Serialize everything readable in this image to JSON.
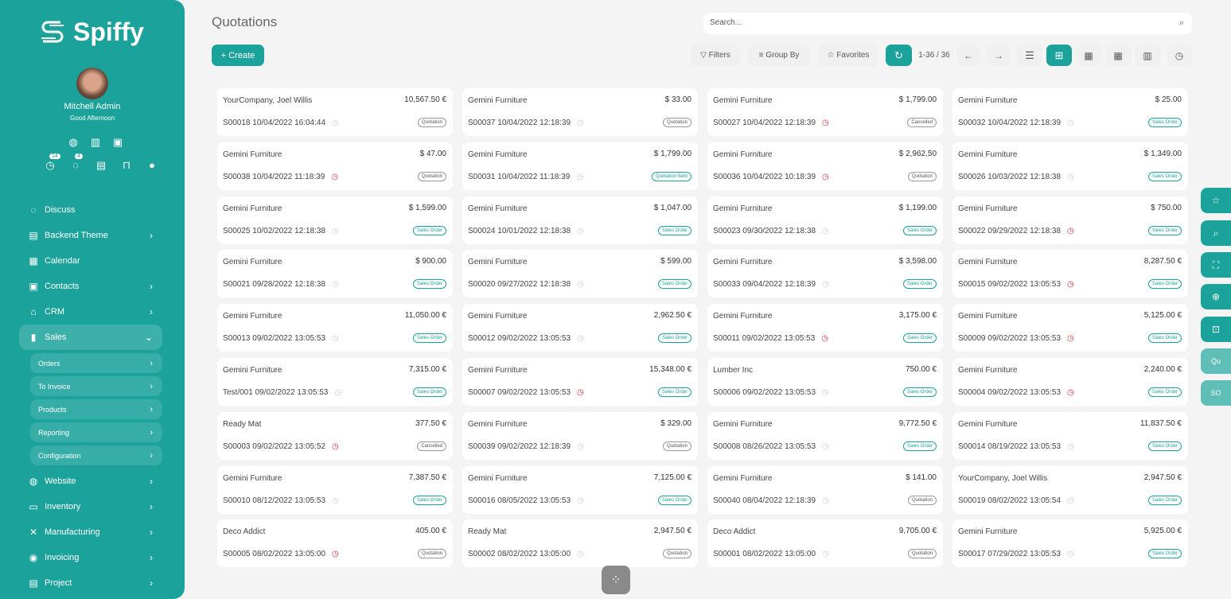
{
  "brand": {
    "name": "Spiffy",
    "color": "#1ba39b"
  },
  "user": {
    "name": "Mitchell Admin",
    "greeting": "Good Afternoon",
    "activity_count": "14",
    "message_count": "4"
  },
  "sidebar": {
    "items": [
      {
        "label": "Discuss",
        "icon": "chat-icon",
        "icon_glyph": "◌",
        "chevron": false
      },
      {
        "label": "Backend Theme",
        "icon": "paint-roller-icon",
        "icon_glyph": "▤",
        "chevron": true
      },
      {
        "label": "Calendar",
        "icon": "calendar-icon",
        "icon_glyph": "▦",
        "chevron": false
      },
      {
        "label": "Contacts",
        "icon": "contacts-icon",
        "icon_glyph": "▣",
        "chevron": true
      },
      {
        "label": "CRM",
        "icon": "crm-icon",
        "icon_glyph": "⌂",
        "chevron": true
      },
      {
        "label": "Sales",
        "icon": "chart-bar-icon",
        "icon_glyph": "▮",
        "chevron": true,
        "expanded": true,
        "children": [
          "Orders",
          "To Invoice",
          "Products",
          "Reporting",
          "Configuration"
        ]
      },
      {
        "label": "Website",
        "icon": "globe-icon",
        "icon_glyph": "◍",
        "chevron": true
      },
      {
        "label": "Inventory",
        "icon": "box-icon",
        "icon_glyph": "▭",
        "chevron": true
      },
      {
        "label": "Manufacturing",
        "icon": "wrench-icon",
        "icon_glyph": "✕",
        "chevron": true
      },
      {
        "label": "Invoicing",
        "icon": "dollar-icon",
        "icon_glyph": "◉",
        "chevron": true
      },
      {
        "label": "Project",
        "icon": "project-icon",
        "icon_glyph": "▤",
        "chevron": true
      }
    ]
  },
  "header": {
    "title": "Quotations",
    "search_placeholder": "Search...",
    "create_label": "+ Create",
    "filters_label": "Filters",
    "group_by_label": "Group By",
    "favorites_label": "Favorites",
    "pager": "1-36 / 36"
  },
  "cards": [
    [
      "YourCompany, Joel Willis",
      "10,567.50 €",
      "S00018 10/04/2022 16:04:44",
      false,
      "Quotation"
    ],
    [
      "Gemini Furniture",
      "$ 33.00",
      "S00037 10/04/2022 12:18:39",
      false,
      "Quotation"
    ],
    [
      "Gemini Furniture",
      "$ 1,799.00",
      "S00027 10/04/2022 12:18:39",
      true,
      "Cancelled"
    ],
    [
      "Gemini Furniture",
      "$ 25.00",
      "S00032 10/04/2022 12:18:39",
      false,
      "Sales Order"
    ],
    [
      "Gemini Furniture",
      "$ 47.00",
      "S00038 10/04/2022 11:18:39",
      true,
      "Quotation"
    ],
    [
      "Gemini Furniture",
      "$ 1,799.00",
      "S00031 10/04/2022 11:18:39",
      false,
      "Quotation Sent"
    ],
    [
      "Gemini Furniture",
      "$ 2,962.50",
      "S00036 10/04/2022 10:18:39",
      true,
      "Quotation"
    ],
    [
      "Gemini Furniture",
      "$ 1,349.00",
      "S00026 10/03/2022 12:18:38",
      false,
      "Sales Order"
    ],
    [
      "Gemini Furniture",
      "$ 1,599.00",
      "S00025 10/02/2022 12:18:38",
      false,
      "Sales Order"
    ],
    [
      "Gemini Furniture",
      "$ 1,047.00",
      "S00024 10/01/2022 12:18:38",
      false,
      "Sales Order"
    ],
    [
      "Gemini Furniture",
      "$ 1,199.00",
      "S00023 09/30/2022 12:18:38",
      false,
      "Sales Order"
    ],
    [
      "Gemini Furniture",
      "$ 750.00",
      "S00022 09/29/2022 12:18:38",
      true,
      "Sales Order"
    ],
    [
      "Gemini Furniture",
      "$ 900.00",
      "S00021 09/28/2022 12:18:38",
      false,
      "Sales Order"
    ],
    [
      "Gemini Furniture",
      "$ 599.00",
      "S00020 09/27/2022 12:18:38",
      false,
      "Sales Order"
    ],
    [
      "Gemini Furniture",
      "$ 3,598.00",
      "S00033 09/04/2022 12:18:39",
      false,
      "Sales Order"
    ],
    [
      "Gemini Furniture",
      "8,287.50 €",
      "S00015 09/02/2022 13:05:53",
      true,
      "Sales Order"
    ],
    [
      "Gemini Furniture",
      "11,050.00 €",
      "S00013 09/02/2022 13:05:53",
      false,
      "Sales Order"
    ],
    [
      "Gemini Furniture",
      "2,962.50 €",
      "S00012 09/02/2022 13:05:53",
      false,
      "Sales Order"
    ],
    [
      "Gemini Furniture",
      "3,175.00 €",
      "S00011 09/02/2022 13:05:53",
      true,
      "Sales Order"
    ],
    [
      "Gemini Furniture",
      "5,125.00 €",
      "S00009 09/02/2022 13:05:53",
      true,
      "Sales Order"
    ],
    [
      "Gemini Furniture",
      "7,315.00 €",
      "Test/001 09/02/2022 13:05:53",
      false,
      "Sales Order"
    ],
    [
      "Gemini Furniture",
      "15,348.00 €",
      "S00007 09/02/2022 13:05:53",
      true,
      "Sales Order"
    ],
    [
      "Lumber Inc",
      "750.00 €",
      "S00006 09/02/2022 13:05:53",
      false,
      "Sales Order"
    ],
    [
      "Gemini Furniture",
      "2,240.00 €",
      "S00004 09/02/2022 13:05:53",
      true,
      "Sales Order"
    ],
    [
      "Ready Mat",
      "377.50 €",
      "S00003 09/02/2022 13:05:52",
      true,
      "Cancelled"
    ],
    [
      "Gemini Furniture",
      "$ 329.00",
      "S00039 09/02/2022 12:18:39",
      false,
      "Quotation"
    ],
    [
      "Gemini Furniture",
      "9,772.50 €",
      "S00008 08/26/2022 13:05:53",
      false,
      "Sales Order"
    ],
    [
      "Gemini Furniture",
      "11,837.50 €",
      "S00014 08/19/2022 13:05:53",
      false,
      "Sales Order"
    ],
    [
      "Gemini Furniture",
      "7,387.50 €",
      "S00010 08/12/2022 13:05:53",
      false,
      "Sales Order"
    ],
    [
      "Gemini Furniture",
      "7,125.00 €",
      "S00016 08/05/2022 13:05:53",
      false,
      "Sales Order"
    ],
    [
      "Gemini Furniture",
      "$ 141.00",
      "S00040 08/04/2022 12:18:39",
      false,
      "Quotation"
    ],
    [
      "YourCompany, Joel Willis",
      "2,947.50 €",
      "S00019 08/02/2022 13:05:54",
      false,
      "Sales Order"
    ],
    [
      "Deco Addict",
      "405.00 €",
      "S00005 08/02/2022 13:05:00",
      true,
      "Quotation"
    ],
    [
      "Ready Mat",
      "2,947.50 €",
      "S00002 08/02/2022 13:05:00",
      false,
      "Quotation"
    ],
    [
      "Deco Addict",
      "9,705.00 €",
      "S00001 08/02/2022 13:05:00",
      false,
      "Quotation"
    ],
    [
      "Gemini Furniture",
      "5,925.00 €",
      "S00017 07/29/2022 13:05:53",
      false,
      "Sales Order"
    ]
  ],
  "floating": {
    "quotation_short": "Qu",
    "sales_order_short": "SO"
  }
}
